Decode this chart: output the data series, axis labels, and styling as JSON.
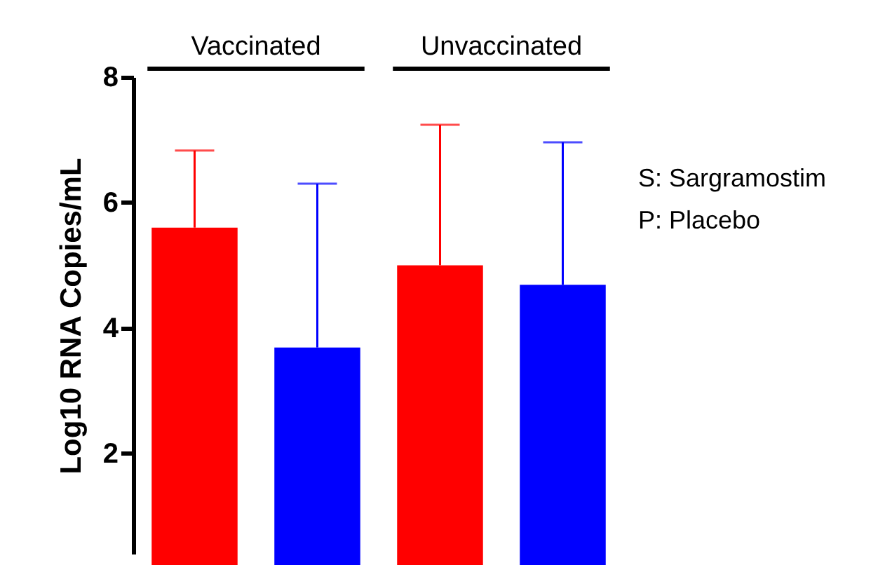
{
  "chart_data": {
    "type": "bar",
    "ylabel": "Log10 RNA Copies/mL",
    "categories": [
      null,
      null,
      null,
      null
    ],
    "values": [
      5.6,
      3.69,
      5.0,
      4.69
    ],
    "colors": [
      "#ff0000",
      "#0000ff",
      "#ff0000",
      "#0000ff"
    ],
    "errors": [
      [
        5.6,
        6.83
      ],
      [
        3.69,
        6.3
      ],
      [
        5.0,
        7.24
      ],
      [
        4.69,
        6.96
      ]
    ],
    "ylim": [
      0.4,
      8
    ],
    "yticks": [
      2,
      4,
      6,
      8
    ],
    "grid": false,
    "annotations": [
      "Vaccinated",
      "Unvaccinated",
      "S: Sargramostim",
      "P: Placebo"
    ]
  }
}
